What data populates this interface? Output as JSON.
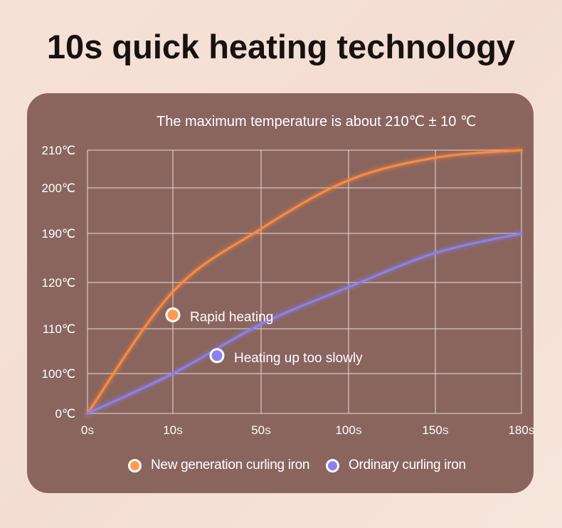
{
  "header": {
    "title": "10s quick heating technology"
  },
  "chart_data": {
    "type": "line",
    "subtitle": "The maximum temperature is about 210℃  ± 10 ℃",
    "x_ticks": [
      {
        "value": "0",
        "unit": "S"
      },
      {
        "value": "10",
        "unit": "S"
      },
      {
        "value": "50",
        "unit": "S"
      },
      {
        "value": "100",
        "unit": "S"
      },
      {
        "value": "150",
        "unit": "S"
      },
      {
        "value": "180",
        "unit": "S"
      }
    ],
    "y_ticks": [
      "0℃",
      "100℃",
      "110℃",
      "120℃",
      "190℃",
      "200℃",
      "210℃"
    ],
    "series": [
      {
        "name": "New generation curling iron",
        "color": "#ff8a3c",
        "x_index": [
          0,
          1,
          2,
          3,
          4,
          5
        ],
        "y_index": [
          0,
          2.8,
          4.1,
          5.2,
          5.8,
          6.0
        ]
      },
      {
        "name": "Ordinary curling iron",
        "color": "#8a80f0",
        "x_index": [
          0,
          1,
          2,
          3,
          4,
          5
        ],
        "y_index": [
          0,
          1.0,
          2.1,
          2.9,
          3.6,
          4.0
        ]
      }
    ],
    "annotations": [
      {
        "text": "Rapid heating",
        "series": 0,
        "x_index": 1,
        "y_index": 2.3
      },
      {
        "text": "Heating up too slowly",
        "series": 1,
        "x_index": 1.5,
        "y_index": 1.4
      }
    ],
    "grid": true,
    "legend": "bottom"
  }
}
